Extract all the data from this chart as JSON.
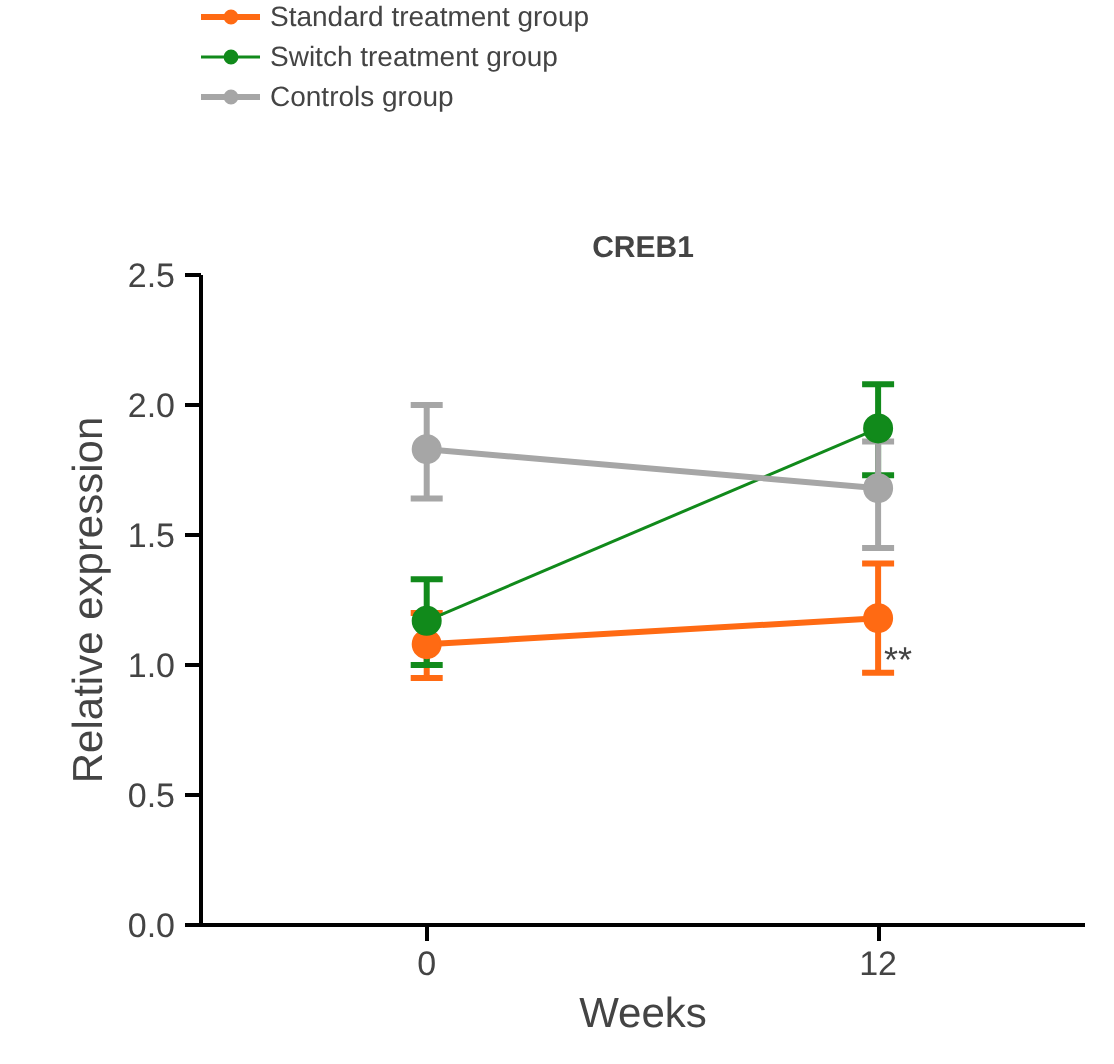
{
  "chart_data": {
    "type": "line",
    "title": "CREB1",
    "xlabel": "Weeks",
    "ylabel": "Relative expression",
    "x": [
      0,
      12
    ],
    "xlim": [
      -6,
      17.5
    ],
    "xticks": [
      0,
      12
    ],
    "ylim": [
      0,
      2.5
    ],
    "yticks": [
      {
        "value": 0,
        "label": "0.0"
      },
      0.5,
      {
        "value": 1,
        "label": "1.0"
      },
      1.5,
      {
        "value": 2,
        "label": "2.0"
      },
      2.5
    ],
    "series": [
      {
        "name": "Standard treatment group",
        "color": "#ff6a13",
        "values": [
          1.08,
          1.18
        ],
        "errors": [
          [
            0.95,
            1.2
          ],
          [
            0.97,
            1.39
          ]
        ]
      },
      {
        "name": "Switch treatment group",
        "color": "#118a1b",
        "values": [
          1.17,
          1.91
        ],
        "errors": [
          [
            1.0,
            1.33
          ],
          [
            1.73,
            2.08
          ]
        ]
      },
      {
        "name": "Controls group",
        "color": "#a6a6a6",
        "values": [
          1.83,
          1.68
        ],
        "errors": [
          [
            1.64,
            2.0
          ],
          [
            1.45,
            1.86
          ]
        ]
      }
    ],
    "annotations": [
      {
        "text": "**",
        "x": 12,
        "y": 1.02
      }
    ],
    "marker": "circle",
    "legend": "top left",
    "grid": false
  }
}
